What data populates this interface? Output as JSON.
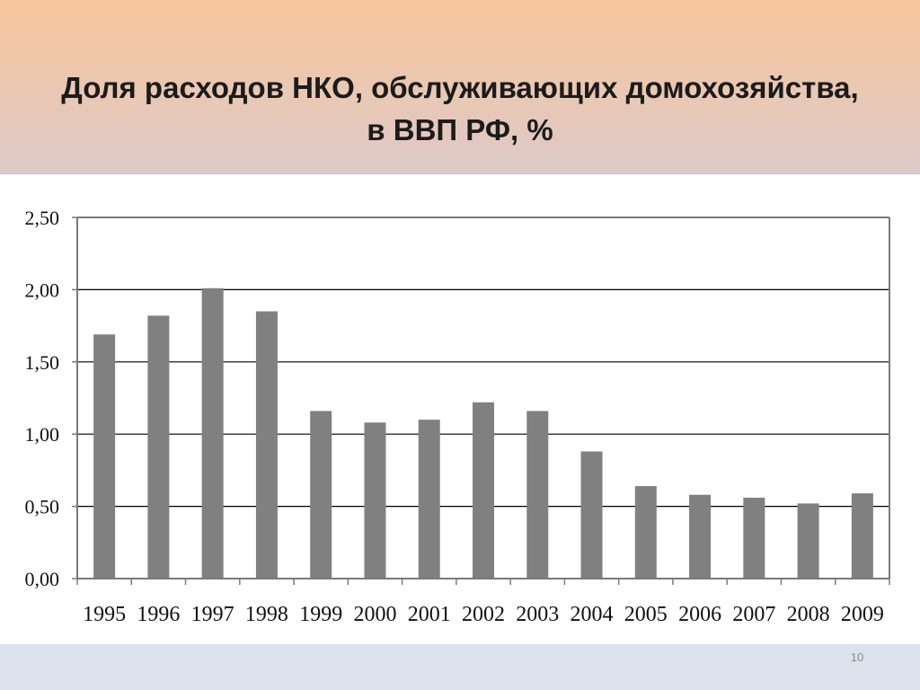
{
  "slide": {
    "title_line1": "Доля расходов НКО, обслуживающих домохозяйства,",
    "title_line2": "в ВВП РФ, %",
    "page_number": "10"
  },
  "chart_data": {
    "type": "bar",
    "categories": [
      "1995",
      "1996",
      "1997",
      "1998",
      "1999",
      "2000",
      "2001",
      "2002",
      "2003",
      "2004",
      "2005",
      "2006",
      "2007",
      "2008",
      "2009"
    ],
    "values": [
      1.69,
      1.82,
      2.01,
      1.85,
      1.16,
      1.08,
      1.1,
      1.22,
      1.16,
      0.88,
      0.64,
      0.58,
      0.56,
      0.52,
      0.59
    ],
    "y_ticks": [
      "0,00",
      "0,50",
      "1,00",
      "1,50",
      "2,00",
      "2,50"
    ],
    "ylim": [
      0,
      2.5
    ],
    "grid": true,
    "legend": "none",
    "bar_color": "#808080"
  }
}
